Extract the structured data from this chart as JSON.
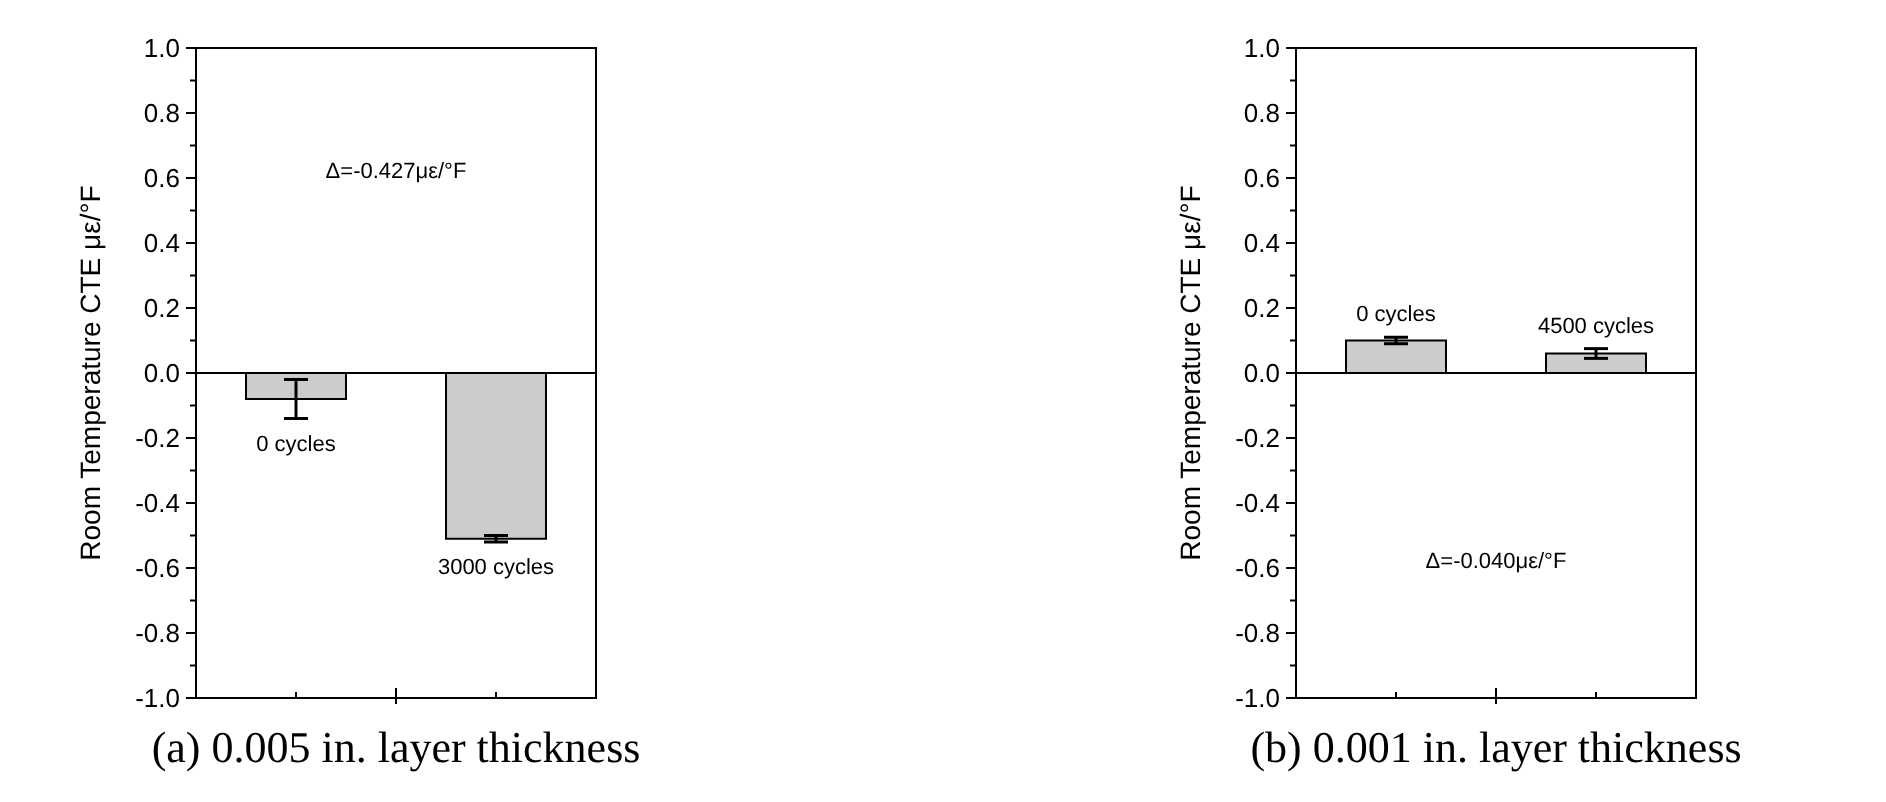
{
  "chart_data": [
    {
      "type": "bar",
      "title": "(a) 0.005 in. layer thickness",
      "ylabel": "Room Temperature CTE με/°F",
      "categories": [
        "0 cycles",
        "3000 cycles"
      ],
      "values": [
        -0.08,
        -0.51
      ],
      "errors": [
        0.06,
        0.01
      ],
      "color": "#cccccc",
      "ylim": [
        -1.0,
        1.0
      ],
      "yticks": [
        {
          "value": -1,
          "label": "-1.0"
        },
        {
          "value": -0.8,
          "label": "-0.8"
        },
        {
          "value": -0.6,
          "label": "-0.6"
        },
        {
          "value": -0.4,
          "label": "-0.4"
        },
        {
          "value": -0.2,
          "label": "-0.2"
        },
        {
          "value": 0,
          "label": "0.0"
        },
        {
          "value": 0.2,
          "label": "0.2"
        },
        {
          "value": 0.4,
          "label": "0.4"
        },
        {
          "value": 0.6,
          "label": "0.6"
        },
        {
          "value": 0.8,
          "label": "0.8"
        },
        {
          "value": 1,
          "label": "1.0"
        }
      ],
      "ref_lines": [
        {
          "axis": "y",
          "value": 0
        }
      ],
      "annotations": [
        "Δ=-0.427με/°F"
      ]
    },
    {
      "type": "bar",
      "title": "(b) 0.001 in. layer thickness",
      "ylabel": "Room Temperature CTE με/°F",
      "categories": [
        "0 cycles",
        "4500 cycles"
      ],
      "values": [
        0.1,
        0.06
      ],
      "errors": [
        0.01,
        0.015
      ],
      "color": "#cccccc",
      "ylim": [
        -1.0,
        1.0
      ],
      "yticks": [
        {
          "value": -1,
          "label": "-1.0"
        },
        {
          "value": -0.8,
          "label": "-0.8"
        },
        {
          "value": -0.6,
          "label": "-0.6"
        },
        {
          "value": -0.4,
          "label": "-0.4"
        },
        {
          "value": -0.2,
          "label": "-0.2"
        },
        {
          "value": 0,
          "label": "0.0"
        },
        {
          "value": 0.2,
          "label": "0.2"
        },
        {
          "value": 0.4,
          "label": "0.4"
        },
        {
          "value": 0.6,
          "label": "0.6"
        },
        {
          "value": 0.8,
          "label": "0.8"
        },
        {
          "value": 1,
          "label": "1.0"
        }
      ],
      "ref_lines": [
        {
          "axis": "y",
          "value": 0
        }
      ],
      "annotations": [
        "Δ=-0.040με/°F"
      ]
    }
  ]
}
